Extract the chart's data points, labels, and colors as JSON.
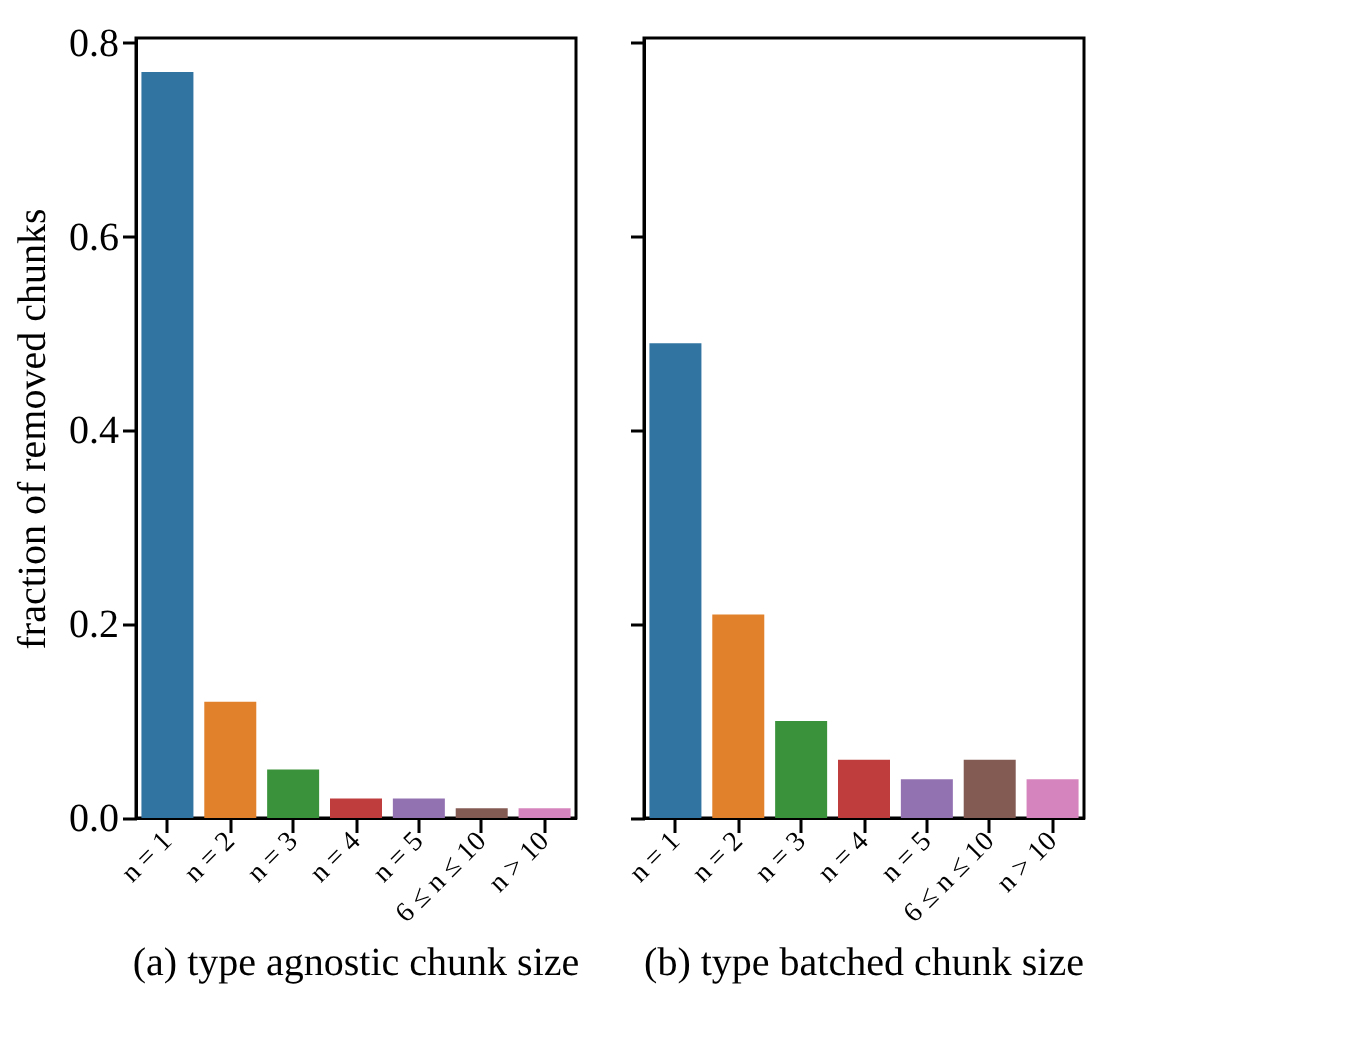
{
  "chart_data": [
    {
      "type": "bar",
      "title": "(a) type agnostic chunk size",
      "ylabel": "fraction of removed chunks",
      "categories": [
        "n = 1",
        "n = 2",
        "n = 3",
        "n = 4",
        "n = 5",
        "6 ≤ n ≤ 10",
        "n > 10"
      ],
      "values": [
        0.77,
        0.12,
        0.05,
        0.02,
        0.02,
        0.01,
        0.01
      ],
      "colors": [
        "#3274a1",
        "#e1812c",
        "#3a923a",
        "#c03d3e",
        "#9372b2",
        "#845b53",
        "#d684bd"
      ],
      "ylim": [
        0,
        0.805
      ],
      "yticks": [
        {
          "value": 0,
          "label": "0.0"
        },
        0.2,
        0.4,
        0.6,
        0.8
      ]
    },
    {
      "type": "bar",
      "title": "(b) type batched chunk size",
      "categories": [
        "n = 1",
        "n = 2",
        "n = 3",
        "n = 4",
        "n = 5",
        "6 ≤ n ≤ 10",
        "n > 10"
      ],
      "values": [
        0.49,
        0.21,
        0.1,
        0.06,
        0.04,
        0.06,
        0.04
      ],
      "colors": [
        "#3274a1",
        "#e1812c",
        "#3a923a",
        "#c03d3e",
        "#9372b2",
        "#845b53",
        "#d684bd"
      ],
      "ylim": [
        0,
        0.805
      ],
      "yticks": [
        {
          "value": 0,
          "label": null
        },
        {
          "value": 0.2,
          "label": null
        },
        {
          "value": 0.4,
          "label": null
        },
        {
          "value": 0.6,
          "label": null
        },
        {
          "value": 0.8,
          "label": null
        }
      ],
      "tick_labels": "x"
    }
  ]
}
